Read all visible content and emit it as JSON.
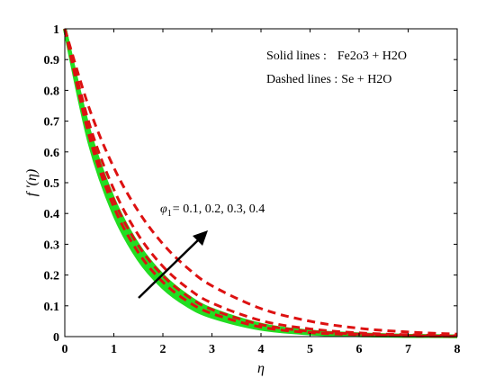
{
  "chart_data": {
    "type": "line",
    "xlabel": "η",
    "ylabel": "f '(η)",
    "xlim": [
      0,
      8
    ],
    "ylim": [
      0,
      1
    ],
    "xticks": [
      "0",
      "1",
      "2",
      "3",
      "4",
      "5",
      "6",
      "7",
      "8"
    ],
    "yticks": [
      "0",
      "0.1",
      "0.2",
      "0.3",
      "0.4",
      "0.5",
      "0.6",
      "0.7",
      "0.8",
      "0.9",
      "1"
    ],
    "grid": false,
    "legend": {
      "solid_prefix": "Solid lines :",
      "solid_text": "Fe2o3 + H2O",
      "dashed_prefix": "Dashed lines :",
      "dashed_text": "Se + H2O"
    },
    "annotation": {
      "phi_symbol": "φ",
      "phi_subscript": "1",
      "values_text": "= 0.1, 0.2, 0.3, 0.4"
    },
    "colors": {
      "solid": "#22dd22",
      "dashed": "#dd1111",
      "arrow": "#000000"
    },
    "series": [
      {
        "group": "solid",
        "phi": 0.1,
        "x": [
          0,
          0.5,
          1,
          1.5,
          2,
          2.5,
          3,
          4,
          5,
          6,
          7,
          8
        ],
        "y": [
          1,
          0.631,
          0.399,
          0.252,
          0.16,
          0.101,
          0.064,
          0.025,
          0.01,
          0.004,
          0.002,
          0.001
        ]
      },
      {
        "group": "solid",
        "phi": 0.2,
        "x": [
          0,
          0.5,
          1,
          1.5,
          2,
          2.5,
          3,
          4,
          5,
          6,
          7,
          8
        ],
        "y": [
          1,
          0.643,
          0.413,
          0.266,
          0.171,
          0.11,
          0.071,
          0.029,
          0.012,
          0.005,
          0.002,
          0.001
        ]
      },
      {
        "group": "solid",
        "phi": 0.3,
        "x": [
          0,
          0.5,
          1,
          1.5,
          2,
          2.5,
          3,
          4,
          5,
          6,
          7,
          8
        ],
        "y": [
          1,
          0.655,
          0.429,
          0.281,
          0.184,
          0.121,
          0.079,
          0.034,
          0.015,
          0.006,
          0.003,
          0.001
        ]
      },
      {
        "group": "solid",
        "phi": 0.4,
        "x": [
          0,
          0.5,
          1,
          1.5,
          2,
          2.5,
          3,
          4,
          5,
          6,
          7,
          8
        ],
        "y": [
          1,
          0.667,
          0.444,
          0.296,
          0.198,
          0.132,
          0.088,
          0.039,
          0.017,
          0.008,
          0.003,
          0.001
        ]
      },
      {
        "group": "dashed",
        "phi": 0.1,
        "x": [
          0,
          0.5,
          1,
          1.5,
          2,
          2.5,
          3,
          4,
          5,
          6,
          7,
          8
        ],
        "y": [
          1,
          0.649,
          0.421,
          0.273,
          0.177,
          0.115,
          0.075,
          0.031,
          0.013,
          0.006,
          0.002,
          0.001
        ]
      },
      {
        "group": "dashed",
        "phi": 0.2,
        "x": [
          0,
          0.5,
          1,
          1.5,
          2,
          2.5,
          3,
          4,
          5,
          6,
          7,
          8
        ],
        "y": [
          1,
          0.667,
          0.444,
          0.296,
          0.198,
          0.132,
          0.088,
          0.039,
          0.017,
          0.008,
          0.003,
          0.001
        ]
      },
      {
        "group": "dashed",
        "phi": 0.3,
        "x": [
          0,
          0.5,
          1,
          1.5,
          2,
          2.5,
          3,
          4,
          5,
          6,
          7,
          8
        ],
        "y": [
          1,
          0.691,
          0.478,
          0.33,
          0.228,
          0.158,
          0.109,
          0.052,
          0.025,
          0.012,
          0.006,
          0.003
        ]
      },
      {
        "group": "dashed",
        "phi": 0.4,
        "x": [
          0,
          0.5,
          1,
          1.5,
          2,
          2.5,
          3,
          4,
          5,
          6,
          7,
          8
        ],
        "y": [
          1,
          0.741,
          0.549,
          0.407,
          0.301,
          0.223,
          0.165,
          0.091,
          0.05,
          0.027,
          0.015,
          0.008
        ]
      }
    ]
  }
}
